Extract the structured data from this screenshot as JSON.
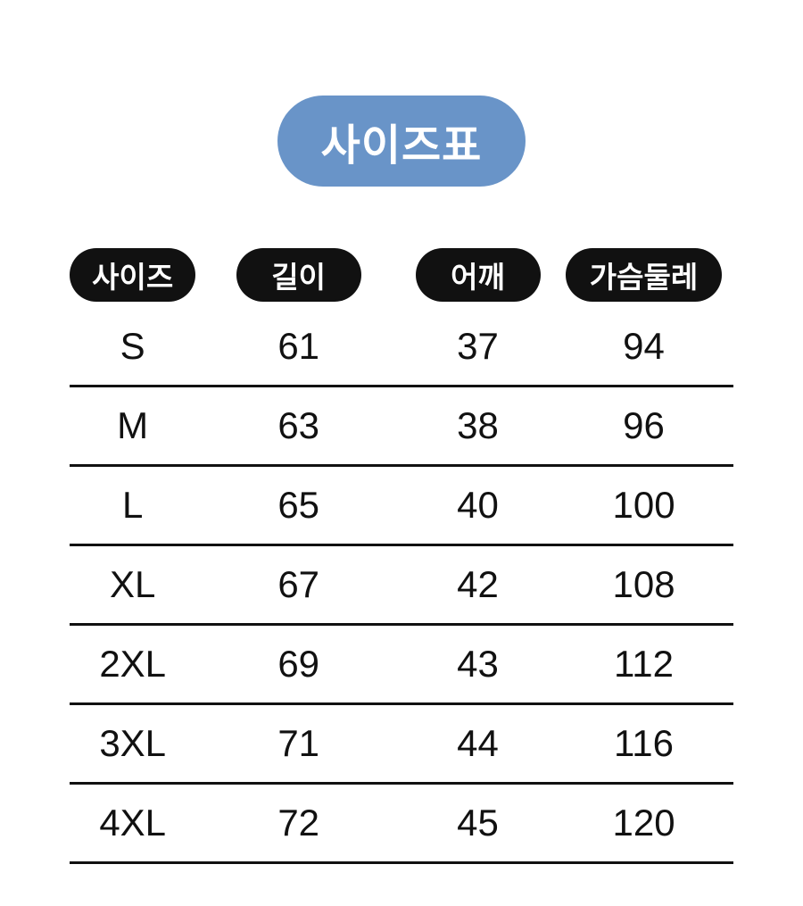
{
  "title_badge": {
    "label": "사이즈표"
  },
  "colors": {
    "title_pill_bg": "#6994C8",
    "title_pill_text": "#FFFFFF",
    "header_pill_bg": "#111111",
    "header_pill_text": "#FFFFFF",
    "body_text": "#111111",
    "divider": "#111111",
    "background": "#FFFFFF"
  },
  "chart_data": {
    "type": "table",
    "title": "사이즈표",
    "columns": [
      "사이즈",
      "길이",
      "어깨",
      "가슴둘레"
    ],
    "rows": [
      [
        "S",
        61,
        37,
        94
      ],
      [
        "M",
        63,
        38,
        96
      ],
      [
        "L",
        65,
        40,
        100
      ],
      [
        "XL",
        67,
        42,
        108
      ],
      [
        "2XL",
        69,
        43,
        112
      ],
      [
        "3XL",
        71,
        44,
        116
      ],
      [
        "4XL",
        72,
        45,
        120
      ]
    ],
    "layout": {
      "grid": "horizontal rules under every data row",
      "legend": "none",
      "header_style": "black rounded pill badges",
      "title_style": "blue rounded pill badge"
    }
  }
}
